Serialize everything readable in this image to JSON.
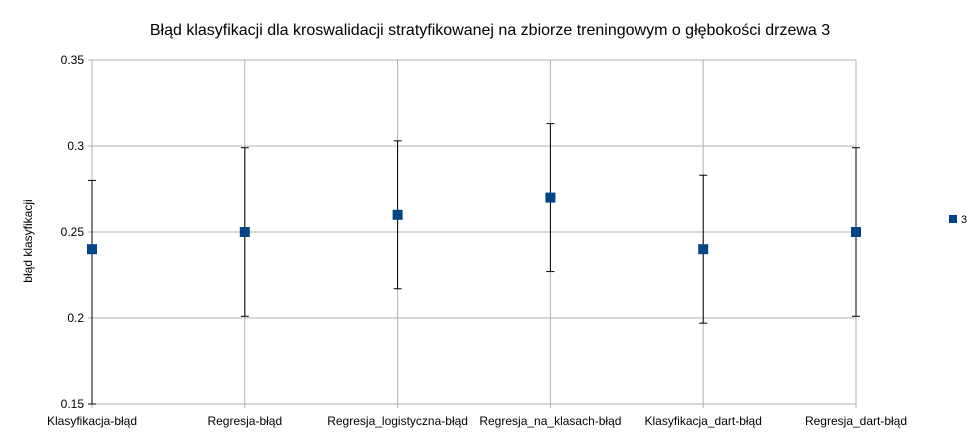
{
  "chart_data": {
    "type": "scatter",
    "title": "Błąd klasyfikacji dla kroswalidacji stratyfikowanej na zbiorze treningowym o głębokości drzewa 3",
    "xlabel": "",
    "ylabel": "błąd klasyfikacji",
    "categories": [
      "Klasyfikacja-błąd",
      "Regresja-błąd",
      "Regresja_logistyczna-błąd",
      "Regresja_na_klasach-błąd",
      "Klasyfikacja_dart-błąd",
      "Regresja_dart-błąd"
    ],
    "series": [
      {
        "name": "3",
        "values": [
          0.24,
          0.25,
          0.26,
          0.27,
          0.24,
          0.25
        ],
        "error_low": [
          0.15,
          0.201,
          0.217,
          0.227,
          0.197,
          0.201
        ],
        "error_high": [
          0.28,
          0.299,
          0.303,
          0.313,
          0.283,
          0.299
        ],
        "color": "#004586"
      }
    ],
    "ylim": [
      0.15,
      0.35
    ],
    "yticks": [
      0.15,
      0.2,
      0.25,
      0.3,
      0.35
    ],
    "ytick_labels": [
      "0.15",
      "0.2",
      "0.25",
      "0.3",
      "0.35"
    ],
    "grid": true,
    "legend_position": "right"
  }
}
